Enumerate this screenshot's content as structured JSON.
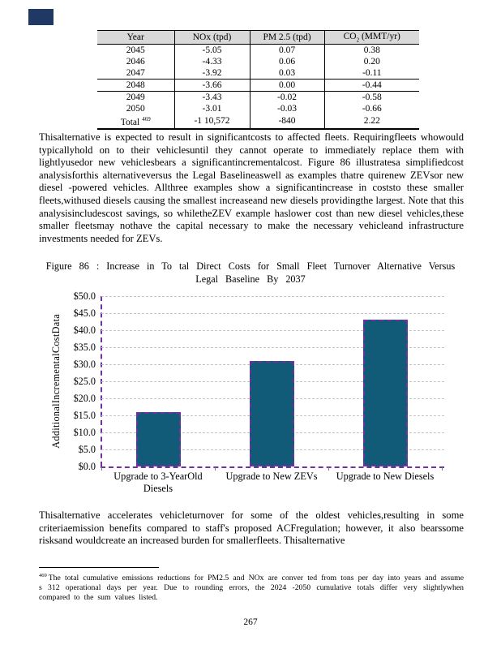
{
  "corner_mark": {
    "color": "#1F3864"
  },
  "table": {
    "headers": [
      "Year",
      "NOx (tpd)",
      "PM 2.5 (tpd)"
    ],
    "co2_header": {
      "base": "CO",
      "sub": "2",
      "rest": " (MMT/yr)"
    },
    "rows": [
      [
        "2045",
        "-5.05",
        "0.07",
        "0.38"
      ],
      [
        "2046",
        "-4.33",
        "0.06",
        "0.20"
      ],
      [
        "2047",
        "-3.92",
        "0.03",
        "-0.11"
      ],
      [
        "2048",
        "-3.66",
        "0.00",
        "-0.44"
      ],
      [
        "2049",
        "-3.43",
        "-0.02",
        "-0.58"
      ],
      [
        "2050",
        "-3.01",
        "-0.03",
        "-0.66"
      ]
    ],
    "total_row": {
      "label": "Total",
      "sup": "469",
      "values": [
        "-1 10,572",
        "-840",
        "2.22"
      ]
    }
  },
  "paragraphs": {
    "p1": "Thisalternative is expected to result in significantcosts to affected fleets. Requiringfleets whowould typicallyhold on to their vehiclesuntil they cannot operate to immediately replace them with lightlyusedor new vehiclesbears a significantincrementalcost. Figure 86 illustratesa simplifiedcost analysisforthis alternativeversus the Legal Baselineaswell as examples thatre quirenew ZEVsor new diesel -powered vehicles. Allthree examples show a significantincrease in coststo these smaller fleets,withused diesels causing the smallest increaseand new diesels providingthe largest. Note that this analysisincludescost savings, so whiletheZEV example haslower cost than new diesel vehicles,these smaller fleetsmay nothave the capital necessary to make the necessary vehicleand infrastructure investments needed for ZEVs.",
    "p2": "Thisalternative accelerates vehicleturnover for some of the oldest vehicles,resulting in some criteriaemission benefits compared to staff's proposed ACFregulation; however, it also bearssome risksand wouldcreate an increased burden for smallerfleets. Thisalternative"
  },
  "figure": {
    "caption": "Figure 86 : Increase in To tal Direct Costs for Small Fleet Turnover Alternative Versus\nLegal Baseline By 2037"
  },
  "chart_data": {
    "type": "bar",
    "title": "Figure 86: Increase in Total Direct Costs for Small Fleet Turnover Alternative Versus Legal Baseline By 2037",
    "categories": [
      "Upgrade to 3-YearOld Diesels",
      "Upgrade to New ZEVs",
      "Upgrade to New Diesels"
    ],
    "values": [
      16,
      31,
      43
    ],
    "xlabel": "",
    "ylabel": "AdditionalIncrementalCostData",
    "ylim": [
      0,
      50
    ],
    "ytick_step": 5,
    "ytick_labels": [
      "$0.0",
      "$5.0",
      "$10.0",
      "$15.0",
      "$20.0",
      "$25.0",
      "$30.0",
      "$35.0",
      "$40.0",
      "$45.0",
      "$50.0"
    ],
    "grid": true,
    "legend": false,
    "bar_color": "#115A78",
    "bar_border_color": "#7030A0"
  },
  "footnote": {
    "marker": "469",
    "text": "The total cumulative emissions reductions for PM2.5 and NOx are conver ted from tons per day into years and assume s 312 operational days per year. Due to rounding errors, the 2024 -2050 cumulative totals differ very slightlywhen compared to the sum values listed."
  },
  "page_number": "267"
}
